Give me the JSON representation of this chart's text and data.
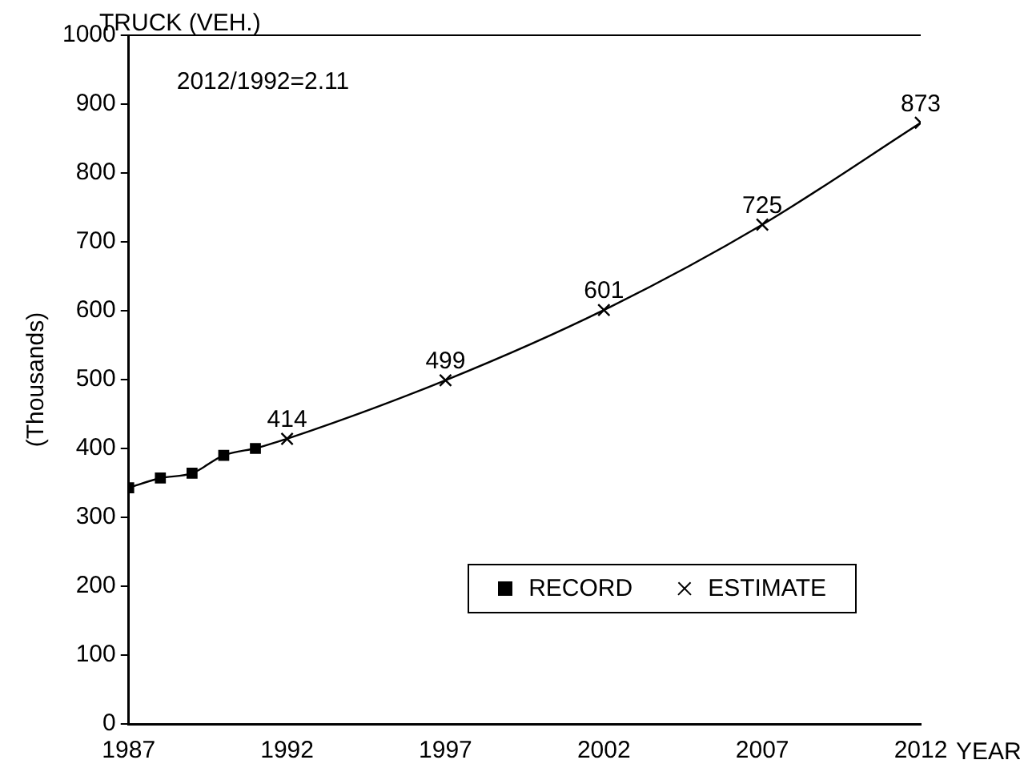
{
  "chart_data": {
    "type": "line",
    "title": "TRUCK (VEH.)",
    "ylabel": "(Thousands)",
    "xlabel": "YEAR",
    "annotations": [
      "2012/1992=2.11"
    ],
    "xlim": [
      1987,
      2012
    ],
    "xticks": [
      1987,
      1992,
      1997,
      2002,
      2007,
      2012
    ],
    "ylim": [
      0,
      1000
    ],
    "yticks": [
      0,
      100,
      200,
      300,
      400,
      500,
      600,
      700,
      800,
      900,
      1000
    ],
    "grid": false,
    "legend": "bottom right",
    "series": [
      {
        "name": "RECORD",
        "color": "#000000",
        "marker": "square",
        "x": [
          1987,
          1988,
          1989,
          1990,
          1991
        ],
        "values": [
          343,
          357,
          364,
          390,
          400
        ]
      },
      {
        "name": "ESTIMATE",
        "color": "#000000",
        "marker": "cross",
        "x": [
          1991,
          1992,
          1997,
          2002,
          2007,
          2012
        ],
        "values": [
          400,
          414,
          499,
          601,
          725,
          873
        ],
        "value_labels": [
          null,
          "414",
          "499",
          "601",
          "725",
          "873"
        ]
      }
    ]
  }
}
